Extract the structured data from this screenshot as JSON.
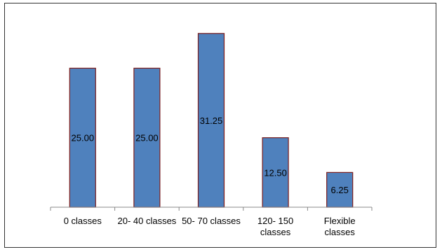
{
  "chart_data": {
    "type": "bar",
    "categories": [
      [
        "0 classes"
      ],
      [
        "20- 40 classes"
      ],
      [
        "50- 70 classes"
      ],
      [
        "120- 150",
        "classes"
      ],
      [
        "Flexible",
        "classes"
      ]
    ],
    "values": [
      25.0,
      25.0,
      31.25,
      12.5,
      6.25
    ],
    "value_labels": [
      "25.00",
      "25.00",
      "31.25",
      "12.50",
      "6.25"
    ],
    "title": "",
    "xlabel": "",
    "ylabel": "",
    "ylim": [
      0,
      35
    ],
    "grid": false,
    "legend": "none",
    "bar_color": "#4f81bd",
    "bar_edge_color": "#7b1c1c"
  }
}
